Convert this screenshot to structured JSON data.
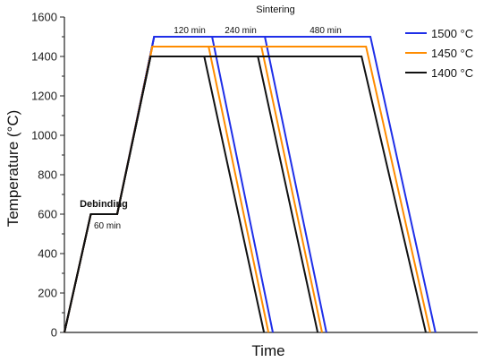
{
  "chart_data": {
    "type": "line",
    "title": "",
    "xlabel": "Time",
    "ylabel": "Temperature (°C)",
    "ylim": [
      0,
      1600
    ],
    "yticks": [
      "0",
      "200",
      "400",
      "600",
      "800",
      "1000",
      "1200",
      "1400",
      "1600"
    ],
    "grid": false,
    "legend_position": "top-right",
    "annotations": {
      "sintering": "Sintering",
      "debinding": "Debinding",
      "debinding_time": "60 min",
      "hold_1": "120 min",
      "hold_2": "240 min",
      "hold_3": "480 min"
    },
    "series": [
      {
        "name": "1500 °C",
        "color": "#1f2fe8",
        "peak": 1500,
        "profiles": [
          [
            [
              0,
              0
            ],
            [
              30,
              600
            ],
            [
              60,
              600
            ],
            [
              102,
              1500
            ],
            [
              168,
              1500
            ],
            [
              237,
              0
            ]
          ],
          [
            [
              0,
              0
            ],
            [
              30,
              600
            ],
            [
              60,
              600
            ],
            [
              102,
              1500
            ],
            [
              228,
              1500
            ],
            [
              298,
              0
            ]
          ],
          [
            [
              0,
              0
            ],
            [
              30,
              600
            ],
            [
              60,
              600
            ],
            [
              102,
              1500
            ],
            [
              348,
              1500
            ],
            [
              422,
              0
            ]
          ]
        ]
      },
      {
        "name": "1450 °C",
        "color": "#ff8c00",
        "peak": 1450,
        "profiles": [
          [
            [
              0,
              0
            ],
            [
              30,
              600
            ],
            [
              60,
              600
            ],
            [
              100,
              1450
            ],
            [
              164,
              1450
            ],
            [
              232,
              0
            ]
          ],
          [
            [
              0,
              0
            ],
            [
              30,
              600
            ],
            [
              60,
              600
            ],
            [
              100,
              1450
            ],
            [
              224,
              1450
            ],
            [
              293,
              0
            ]
          ],
          [
            [
              0,
              0
            ],
            [
              30,
              600
            ],
            [
              60,
              600
            ],
            [
              100,
              1450
            ],
            [
              343,
              1450
            ],
            [
              416,
              0
            ]
          ]
        ]
      },
      {
        "name": "1400 °C",
        "color": "#111111",
        "peak": 1400,
        "profiles": [
          [
            [
              0,
              0
            ],
            [
              30,
              600
            ],
            [
              60,
              600
            ],
            [
              98,
              1400
            ],
            [
              159,
              1400
            ],
            [
              227,
              0
            ]
          ],
          [
            [
              0,
              0
            ],
            [
              30,
              600
            ],
            [
              60,
              600
            ],
            [
              98,
              1400
            ],
            [
              220,
              1400
            ],
            [
              288,
              0
            ]
          ],
          [
            [
              0,
              0
            ],
            [
              30,
              600
            ],
            [
              60,
              600
            ],
            [
              98,
              1400
            ],
            [
              338,
              1400
            ],
            [
              411,
              0
            ]
          ]
        ]
      }
    ]
  }
}
